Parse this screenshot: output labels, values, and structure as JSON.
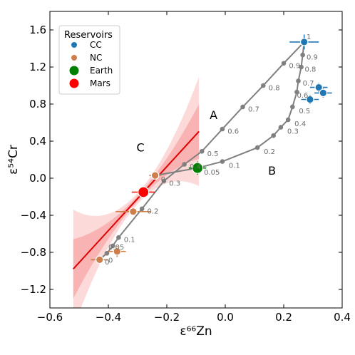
{
  "chart_data": {
    "type": "scatter",
    "xlabel": "ε⁶⁶Zn",
    "ylabel": "ε⁵⁴Cr",
    "xlim": [
      -0.6,
      0.4
    ],
    "ylim": [
      -1.4,
      1.8
    ],
    "x_ticks": [
      -0.6,
      -0.4,
      -0.2,
      0.0,
      0.2,
      0.4
    ],
    "y_ticks": [
      -1.2,
      -0.8,
      -0.4,
      0.0,
      0.4,
      0.8,
      1.2,
      1.6
    ],
    "x_tick_labels": [
      "−0.6",
      "−0.4",
      "−0.2",
      "0.0",
      "0.2",
      "0.4"
    ],
    "y_tick_labels": [
      "−1.2",
      "−0.8",
      "−0.4",
      "0.0",
      "0.4",
      "0.8",
      "1.2",
      "1.6"
    ],
    "grid": false,
    "legend": {
      "title": "Reservoirs",
      "placement": "top-left",
      "entries": [
        {
          "label": "CC",
          "color": "#1f77b4",
          "size": "small"
        },
        {
          "label": "NC",
          "color": "#cd7f4b",
          "size": "small"
        },
        {
          "label": "Earth",
          "color": "#008000",
          "size": "large"
        },
        {
          "label": "Mars",
          "color": "#ff0000",
          "size": "large"
        }
      ]
    },
    "colors": {
      "cc": "#1f77b4",
      "nc": "#cd7f4b",
      "earth": "#008000",
      "mars": "#ff0000",
      "mixing": "#808080",
      "regression": "#e00000",
      "band_outer": "#fcdada",
      "band_inner": "#f9b3b3"
    },
    "regression": {
      "x_range": [
        -0.52,
        -0.09
      ],
      "slope": 3.45,
      "intercept": 0.815
    },
    "reservoir_points": [
      {
        "group": "CC",
        "x": 0.27,
        "y": 1.47,
        "xerr": 0.05,
        "yerr": 0.08
      },
      {
        "group": "CC",
        "x": 0.32,
        "y": 0.98,
        "xerr": 0.03,
        "yerr": 0.05
      },
      {
        "group": "CC",
        "x": 0.335,
        "y": 0.92,
        "xerr": 0.03,
        "yerr": 0.05
      },
      {
        "group": "CC",
        "x": 0.29,
        "y": 0.85,
        "xerr": 0.03,
        "yerr": 0.05
      },
      {
        "group": "NC",
        "x": -0.24,
        "y": 0.03,
        "xerr": 0.02,
        "yerr": 0.04
      },
      {
        "group": "NC",
        "x": -0.315,
        "y": -0.36,
        "xerr": 0.06,
        "yerr": 0.04
      },
      {
        "group": "NC",
        "x": -0.37,
        "y": -0.79,
        "xerr": 0.03,
        "yerr": 0.06
      },
      {
        "group": "NC",
        "x": -0.43,
        "y": -0.88,
        "xerr": 0.03,
        "yerr": 0.03
      },
      {
        "group": "Earth",
        "x": -0.095,
        "y": 0.11,
        "xerr": 0.03,
        "yerr": 0.07
      },
      {
        "group": "Mars",
        "x": -0.28,
        "y": -0.15,
        "xerr": 0.04,
        "yerr": 0.05
      }
    ],
    "mixing_curves": [
      {
        "name": "A",
        "label_position": {
          "x": -0.03,
          "y": 0.64
        },
        "points": [
          {
            "x": -0.43,
            "y": -0.88,
            "f": "0"
          },
          {
            "x": -0.405,
            "y": -0.81,
            "f": ""
          },
          {
            "x": -0.385,
            "y": -0.73,
            "f": ""
          },
          {
            "x": -0.365,
            "y": -0.64,
            "f": "0.1"
          },
          {
            "x": -0.285,
            "y": -0.33,
            "f": "0.2"
          },
          {
            "x": -0.21,
            "y": -0.03,
            "f": "0.3"
          },
          {
            "x": -0.14,
            "y": 0.15,
            "f": "0.4"
          },
          {
            "x": -0.08,
            "y": 0.29,
            "f": "0.5"
          },
          {
            "x": -0.01,
            "y": 0.53,
            "f": "0.6"
          },
          {
            "x": 0.06,
            "y": 0.77,
            "f": "0.7"
          },
          {
            "x": 0.13,
            "y": 1.0,
            "f": "0.8"
          },
          {
            "x": 0.2,
            "y": 1.24,
            "f": "0.9"
          },
          {
            "x": 0.27,
            "y": 1.47,
            "f": "1"
          }
        ]
      },
      {
        "name": "B",
        "label_position": {
          "x": 0.165,
          "y": 0.04
        },
        "points": [
          {
            "x": -0.24,
            "y": 0.03,
            "f": "0"
          },
          {
            "x": -0.095,
            "y": 0.11,
            "f": "0.05"
          },
          {
            "x": -0.01,
            "y": 0.18,
            "f": "0.1"
          },
          {
            "x": 0.11,
            "y": 0.33,
            "f": "0.2"
          },
          {
            "x": 0.165,
            "y": 0.46,
            "f": ""
          },
          {
            "x": 0.19,
            "y": 0.55,
            "f": "0.3"
          },
          {
            "x": 0.215,
            "y": 0.63,
            "f": "0.4"
          },
          {
            "x": 0.23,
            "y": 0.77,
            "f": "0.5"
          },
          {
            "x": 0.245,
            "y": 0.93,
            "f": ""
          },
          {
            "x": 0.25,
            "y": 1.05,
            "f": ""
          },
          {
            "x": 0.26,
            "y": 1.2,
            "f": ""
          },
          {
            "x": 0.265,
            "y": 1.33,
            "f": ""
          },
          {
            "x": 0.27,
            "y": 1.47,
            "f": ""
          }
        ],
        "extra_labels": [
          {
            "x": 0.278,
            "y": 1.28,
            "text": "0.9"
          },
          {
            "x": 0.272,
            "y": 1.15,
            "text": "0.8"
          },
          {
            "x": 0.265,
            "y": 1.0,
            "text": "0.7"
          },
          {
            "x": 0.245,
            "y": 0.87,
            "text": "0.6"
          }
        ]
      }
    ],
    "annotations": [
      {
        "text": "A",
        "x": -0.04,
        "y": 0.64
      },
      {
        "text": "B",
        "x": 0.16,
        "y": 0.04
      },
      {
        "text": "C",
        "x": -0.29,
        "y": 0.29
      }
    ],
    "fraction_labels_curve_a_upper": [
      {
        "x": 0.278,
        "y": 1.5,
        "text": "1"
      }
    ],
    "nc_lower_labels": [
      {
        "x": -0.4,
        "y": -0.77,
        "text": "0.05"
      },
      {
        "x": -0.4,
        "y": -0.91,
        "text": "0"
      }
    ]
  }
}
